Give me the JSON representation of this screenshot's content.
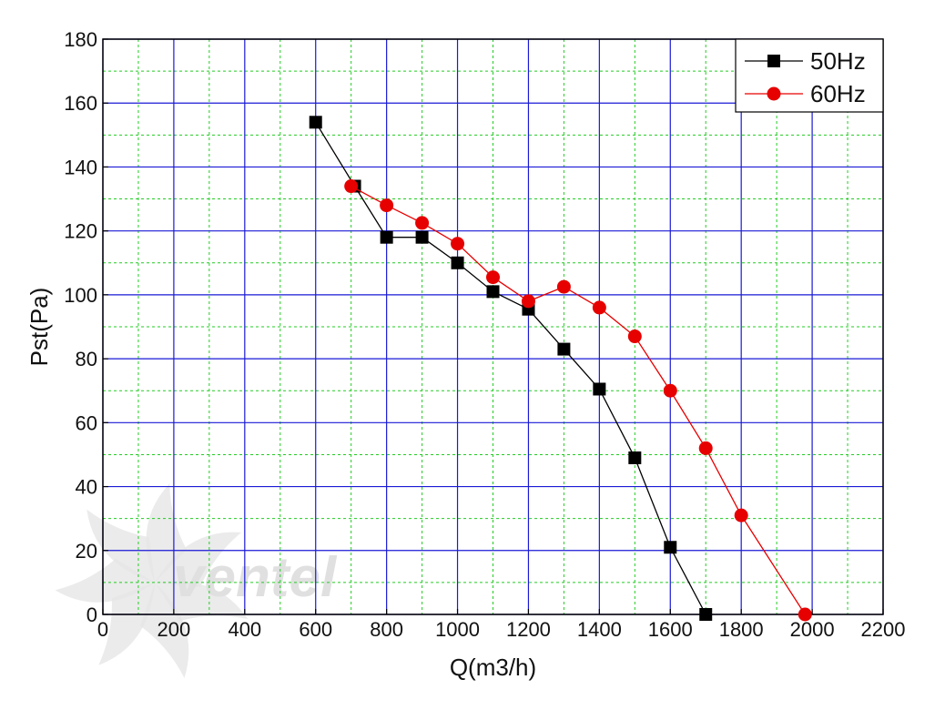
{
  "chart_data": {
    "type": "line",
    "xlabel": "Q(m3/h)",
    "ylabel": "Pst(Pa)",
    "xlim": [
      0,
      2200
    ],
    "ylim": [
      0,
      180
    ],
    "x_ticks": [
      0,
      200,
      400,
      600,
      800,
      1000,
      1200,
      1400,
      1600,
      1800,
      2000,
      2200
    ],
    "y_ticks": [
      0,
      20,
      40,
      60,
      80,
      100,
      120,
      140,
      160,
      180
    ],
    "grid": {
      "major": true,
      "minor": true,
      "major_color": "#1a1ad6",
      "minor_color": "#22cc22"
    },
    "legend_position": "top-right",
    "watermark": "ventel",
    "series": [
      {
        "name": "50Hz",
        "color": "#000000",
        "marker": "square",
        "points": [
          [
            600,
            154
          ],
          [
            710,
            134
          ],
          [
            800,
            118
          ],
          [
            900,
            118
          ],
          [
            1000,
            110
          ],
          [
            1100,
            101
          ],
          [
            1200,
            95.5
          ],
          [
            1300,
            83
          ],
          [
            1400,
            70.5
          ],
          [
            1500,
            49
          ],
          [
            1600,
            21
          ],
          [
            1700,
            0
          ]
        ]
      },
      {
        "name": "60Hz",
        "color": "#e60000",
        "marker": "circle",
        "points": [
          [
            700,
            134
          ],
          [
            800,
            128
          ],
          [
            900,
            122.5
          ],
          [
            1000,
            116
          ],
          [
            1100,
            105.5
          ],
          [
            1200,
            98
          ],
          [
            1300,
            102.5
          ],
          [
            1400,
            96
          ],
          [
            1500,
            87
          ],
          [
            1600,
            70
          ],
          [
            1700,
            52
          ],
          [
            1800,
            31
          ],
          [
            1980,
            0
          ]
        ]
      }
    ]
  }
}
